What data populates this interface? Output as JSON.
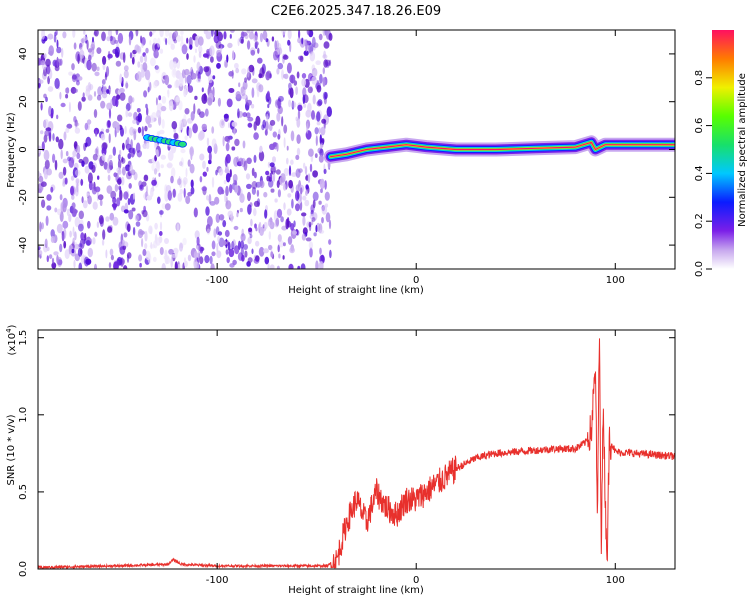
{
  "chart_data": [
    {
      "type": "heatmap",
      "title": "C2E6.2025.347.18.26.E09",
      "xlabel": "Height of straight line (km)",
      "ylabel": "Frequency (Hz)",
      "xlim": [
        -190,
        130
      ],
      "ylim": [
        -50,
        50
      ],
      "xticks": [
        -100,
        0,
        100
      ],
      "xtick_labels": [
        "-100",
        "0",
        "100"
      ],
      "yticks": [
        -40,
        -20,
        0,
        20,
        40
      ],
      "ytick_labels": [
        "-40",
        "-20",
        "0",
        "20",
        "40"
      ],
      "colorbar": {
        "label": "Normalized spectral amplitude",
        "range": [
          0,
          1
        ],
        "ticks": [
          0.0,
          0.2,
          0.4,
          0.6,
          0.8
        ],
        "tick_labels": [
          "0.0",
          "0.2",
          "0.4",
          "0.6",
          "0.8"
        ]
      },
      "noise_region_x": [
        -190,
        -43
      ],
      "signal_trace": {
        "x": [
          -43,
          -35,
          -25,
          -15,
          -5,
          5,
          20,
          40,
          60,
          80,
          88,
          90,
          95,
          110,
          130
        ],
        "y": [
          -3,
          -2,
          0,
          1,
          2,
          1,
          0,
          0,
          0.5,
          1,
          3,
          0,
          2,
          2,
          2
        ]
      },
      "annotations": [
        "cluster near x=-125, y=5 Hz"
      ]
    },
    {
      "type": "line",
      "title": "",
      "xlabel": "Height of straight line (km)",
      "ylabel": "SNR (10 * v/v)",
      "scale_label": "(x10",
      "scale_exp": "4",
      "xlim": [
        -190,
        130
      ],
      "ylim": [
        0,
        1.55
      ],
      "xticks": [
        -100,
        0,
        100
      ],
      "xtick_labels": [
        "-100",
        "0",
        "100"
      ],
      "yticks": [
        0.0,
        0.5,
        1.0,
        1.5
      ],
      "ytick_labels": [
        "0.0",
        "0.5",
        "1.0",
        "1.5"
      ],
      "color": "#e8302c",
      "series": [
        {
          "name": "SNR",
          "x": [
            -190,
            -150,
            -125,
            -122,
            -118,
            -100,
            -60,
            -45,
            -40,
            -35,
            -30,
            -25,
            -20,
            -15,
            -10,
            -5,
            0,
            5,
            10,
            15,
            20,
            30,
            40,
            50,
            60,
            70,
            80,
            85,
            88,
            90,
            91,
            92,
            93,
            94,
            95,
            96,
            97,
            100,
            110,
            120,
            130
          ],
          "y": [
            0.01,
            0.02,
            0.03,
            0.06,
            0.03,
            0.02,
            0.02,
            0.02,
            0.05,
            0.3,
            0.45,
            0.3,
            0.5,
            0.4,
            0.35,
            0.45,
            0.45,
            0.5,
            0.55,
            0.6,
            0.65,
            0.72,
            0.75,
            0.76,
            0.77,
            0.78,
            0.78,
            0.82,
            0.9,
            1.3,
            0.3,
            1.55,
            0.15,
            1.1,
            0.4,
            0.1,
            0.85,
            0.76,
            0.75,
            0.74,
            0.73
          ]
        }
      ]
    }
  ]
}
